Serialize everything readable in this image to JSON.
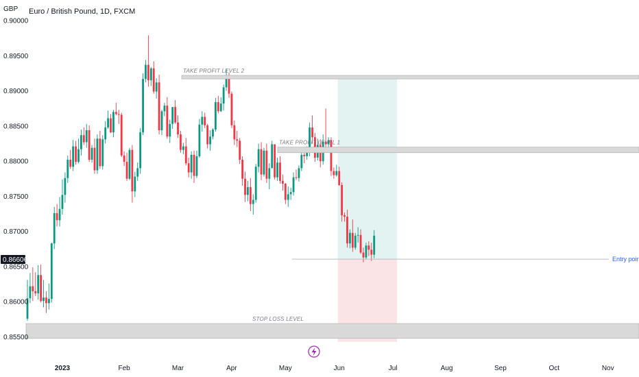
{
  "header": {
    "title": "Euro / British Pound, 1D, FXCM",
    "currency": "GBP"
  },
  "chart_data": {
    "type": "candlestick",
    "title": "Euro / British Pound, 1D, FXCM",
    "ylabel": "GBP",
    "ylim": [
      0.8545,
      0.9024
    ],
    "y_ticks": [
      {
        "label": "0.90000",
        "value": 0.9
      },
      {
        "label": "0.89500",
        "value": 0.895
      },
      {
        "label": "0.89000",
        "value": 0.89
      },
      {
        "label": "0.88500",
        "value": 0.885
      },
      {
        "label": "0.88000",
        "value": 0.88
      },
      {
        "label": "0.87500",
        "value": 0.875
      },
      {
        "label": "0.87000",
        "value": 0.87
      },
      {
        "label": "0.86500",
        "value": 0.865
      },
      {
        "label": "0.86000",
        "value": 0.86
      },
      {
        "label": "0.85500",
        "value": 0.855
      }
    ],
    "x_ticks": [
      {
        "label": "2023",
        "bar": 13,
        "bold": true
      },
      {
        "label": "Feb",
        "bar": 36
      },
      {
        "label": "Mar",
        "bar": 56
      },
      {
        "label": "Apr",
        "bar": 76
      },
      {
        "label": "May",
        "bar": 96
      },
      {
        "label": "Jun",
        "bar": 116
      },
      {
        "label": "Jul",
        "bar": 136
      },
      {
        "label": "Aug",
        "bar": 156
      },
      {
        "label": "Sep",
        "bar": 176
      },
      {
        "label": "Oct",
        "bar": 196
      },
      {
        "label": "Nov",
        "bar": 216
      }
    ],
    "current_price": {
      "label": "0.86606",
      "value": 0.86606
    },
    "bar_closes": [
      0.8605,
      0.8622,
      0.8615,
      0.8612,
      0.8638,
      0.8601,
      0.8606,
      0.8598,
      0.8604,
      0.8683,
      0.8726,
      0.8716,
      0.8732,
      0.8752,
      0.8776,
      0.8802,
      0.8792,
      0.8821,
      0.8799,
      0.8817,
      0.8837,
      0.8827,
      0.8844,
      0.8802,
      0.8819,
      0.8787,
      0.8832,
      0.8793,
      0.8831,
      0.8848,
      0.8861,
      0.8841,
      0.887,
      0.8867,
      0.8866,
      0.8808,
      0.8799,
      0.8775,
      0.8816,
      0.8757,
      0.8778,
      0.879,
      0.8841,
      0.8917,
      0.8937,
      0.8915,
      0.8932,
      0.8899,
      0.8912,
      0.8844,
      0.8871,
      0.8879,
      0.8835,
      0.8853,
      0.8877,
      0.8855,
      0.8838,
      0.8816,
      0.8821,
      0.8797,
      0.8784,
      0.8809,
      0.8779,
      0.8807,
      0.8852,
      0.8863,
      0.8851,
      0.8824,
      0.8835,
      0.8845,
      0.8884,
      0.8871,
      0.8882,
      0.8905,
      0.8921,
      0.8896,
      0.8851,
      0.8831,
      0.8829,
      0.8802,
      0.8775,
      0.8752,
      0.8763,
      0.8739,
      0.8745,
      0.8792,
      0.8817,
      0.8781,
      0.8815,
      0.8775,
      0.879,
      0.8824,
      0.8777,
      0.8798,
      0.8772,
      0.8768,
      0.8745,
      0.8753,
      0.8756,
      0.8777,
      0.8776,
      0.879,
      0.8809,
      0.8807,
      0.8813,
      0.8848,
      0.8834,
      0.8805,
      0.8823,
      0.88,
      0.8828,
      0.8824,
      0.883,
      0.8786,
      0.878,
      0.8786,
      0.8766,
      0.8723,
      0.8721,
      0.8683,
      0.8698,
      0.8677,
      0.8694,
      0.8695,
      0.867,
      0.8663,
      0.868,
      0.8674,
      0.8667,
      0.8694
    ],
    "bar_opens": [
      0.8576,
      0.8605,
      0.8622,
      0.8615,
      0.8612,
      0.8638,
      0.8601,
      0.8606,
      0.8598,
      0.8604,
      0.8683,
      0.8726,
      0.8716,
      0.8732,
      0.8752,
      0.8776,
      0.8802,
      0.8792,
      0.8821,
      0.8799,
      0.8817,
      0.8837,
      0.8827,
      0.8844,
      0.8802,
      0.8819,
      0.8787,
      0.8832,
      0.8793,
      0.8831,
      0.8848,
      0.8861,
      0.8841,
      0.887,
      0.8867,
      0.8866,
      0.8808,
      0.8799,
      0.8775,
      0.8816,
      0.8757,
      0.8778,
      0.879,
      0.8841,
      0.8917,
      0.8937,
      0.8915,
      0.8932,
      0.8899,
      0.8912,
      0.8844,
      0.8871,
      0.8879,
      0.8835,
      0.8853,
      0.8877,
      0.8855,
      0.8838,
      0.8816,
      0.8821,
      0.8797,
      0.8784,
      0.8809,
      0.8779,
      0.8807,
      0.8852,
      0.8863,
      0.8851,
      0.8824,
      0.8835,
      0.8845,
      0.8884,
      0.8871,
      0.8882,
      0.8905,
      0.8921,
      0.8896,
      0.8851,
      0.8831,
      0.8829,
      0.8802,
      0.8775,
      0.8752,
      0.8763,
      0.8739,
      0.8745,
      0.8792,
      0.8817,
      0.8781,
      0.8815,
      0.8775,
      0.879,
      0.8824,
      0.8777,
      0.8798,
      0.8772,
      0.8768,
      0.8745,
      0.8753,
      0.8756,
      0.8777,
      0.8776,
      0.879,
      0.8809,
      0.8807,
      0.8813,
      0.8848,
      0.8834,
      0.8805,
      0.8823,
      0.88,
      0.8828,
      0.8824,
      0.883,
      0.8786,
      0.878,
      0.8786,
      0.8766,
      0.8723,
      0.8721,
      0.8683,
      0.8698,
      0.8677,
      0.8694,
      0.8695,
      0.867,
      0.8663,
      0.868,
      0.8674,
      0.8667
    ],
    "bar_highs": [
      0.8631,
      0.8641,
      0.8649,
      0.8642,
      0.8652,
      0.8653,
      0.8631,
      0.8615,
      0.8626,
      0.8684,
      0.8735,
      0.8739,
      0.8749,
      0.8774,
      0.8784,
      0.8808,
      0.8816,
      0.883,
      0.8829,
      0.8832,
      0.8845,
      0.8848,
      0.8853,
      0.8851,
      0.8823,
      0.8832,
      0.8838,
      0.8843,
      0.8837,
      0.8857,
      0.8872,
      0.8867,
      0.8873,
      0.8883,
      0.8873,
      0.8869,
      0.8814,
      0.8812,
      0.8819,
      0.8823,
      0.8785,
      0.8798,
      0.8847,
      0.8925,
      0.8944,
      0.8979,
      0.8934,
      0.8942,
      0.8918,
      0.8923,
      0.8873,
      0.8883,
      0.8891,
      0.8859,
      0.8877,
      0.8887,
      0.8865,
      0.8843,
      0.8826,
      0.8833,
      0.8805,
      0.8814,
      0.8815,
      0.8815,
      0.886,
      0.8871,
      0.8869,
      0.8853,
      0.8844,
      0.8847,
      0.889,
      0.8893,
      0.8891,
      0.8909,
      0.8931,
      0.8926,
      0.8899,
      0.8858,
      0.8843,
      0.8833,
      0.8807,
      0.8785,
      0.8772,
      0.8776,
      0.8753,
      0.8796,
      0.8825,
      0.8827,
      0.8819,
      0.8825,
      0.8797,
      0.8829,
      0.8824,
      0.8805,
      0.8807,
      0.8781,
      0.8769,
      0.8764,
      0.8762,
      0.8784,
      0.8788,
      0.8794,
      0.8818,
      0.8819,
      0.8821,
      0.8855,
      0.8865,
      0.884,
      0.8832,
      0.8831,
      0.8838,
      0.8875,
      0.8834,
      0.8834,
      0.8791,
      0.8795,
      0.8792,
      0.877,
      0.8727,
      0.8731,
      0.8703,
      0.8717,
      0.8698,
      0.8706,
      0.8703,
      0.8677,
      0.8684,
      0.8686,
      0.8684,
      0.8702
    ],
    "bar_lows": [
      0.8573,
      0.8598,
      0.8601,
      0.8608,
      0.8603,
      0.8599,
      0.8592,
      0.8584,
      0.8589,
      0.8599,
      0.8675,
      0.8707,
      0.8707,
      0.8724,
      0.8741,
      0.8769,
      0.8789,
      0.8786,
      0.8795,
      0.8797,
      0.8808,
      0.8823,
      0.8819,
      0.8799,
      0.8798,
      0.8782,
      0.8782,
      0.8789,
      0.8788,
      0.8825,
      0.8846,
      0.884,
      0.8834,
      0.8865,
      0.8853,
      0.8806,
      0.8793,
      0.8772,
      0.8773,
      0.8741,
      0.8749,
      0.8772,
      0.8782,
      0.8837,
      0.8912,
      0.8906,
      0.8907,
      0.8896,
      0.8889,
      0.8838,
      0.8837,
      0.8864,
      0.8832,
      0.8826,
      0.8846,
      0.8853,
      0.8833,
      0.8812,
      0.881,
      0.8794,
      0.8777,
      0.8775,
      0.8769,
      0.8776,
      0.8805,
      0.8842,
      0.8847,
      0.8818,
      0.8815,
      0.8831,
      0.8842,
      0.8868,
      0.887,
      0.8872,
      0.89,
      0.889,
      0.8847,
      0.8823,
      0.882,
      0.8796,
      0.8765,
      0.8742,
      0.8743,
      0.8729,
      0.8724,
      0.8741,
      0.8784,
      0.8773,
      0.8778,
      0.8769,
      0.876,
      0.879,
      0.8774,
      0.8772,
      0.8768,
      0.8758,
      0.8739,
      0.8735,
      0.8745,
      0.8751,
      0.8773,
      0.8771,
      0.8786,
      0.8797,
      0.8802,
      0.8807,
      0.8825,
      0.8799,
      0.8801,
      0.8791,
      0.8795,
      0.8818,
      0.8815,
      0.8779,
      0.8775,
      0.8778,
      0.8765,
      0.8714,
      0.8714,
      0.8677,
      0.8676,
      0.8671,
      0.8674,
      0.8684,
      0.8668,
      0.8656,
      0.866,
      0.8665,
      0.8658,
      0.8662
    ],
    "overlays": [
      {
        "name": "take-profit-level-2",
        "label": "TAKE PROFIT LEVEL 2",
        "from": 0.8917,
        "to": 0.8922
      },
      {
        "name": "take-profit-level-1",
        "label": "TAKE PROFIT LEVEL 1",
        "from": 0.8812,
        "to": 0.882
      },
      {
        "name": "stop-loss-level",
        "label": "STOP LOSS LEVEL",
        "from": 0.8548,
        "to": 0.8569
      }
    ],
    "entry": {
      "label": "Entry point",
      "value": 0.86606
    },
    "position": {
      "entry": 0.86606,
      "target": 0.8922,
      "stop": 0.8543,
      "from_bar": 116,
      "to_bar": 137
    }
  },
  "colors": {
    "up": "#089981",
    "down": "#f23645",
    "overlay_fill": "#d9d9d9",
    "target_fill": "#e3f3f1",
    "stop_fill": "#fbe4e6",
    "entry": "#2962ff",
    "replay_icon": "#9c27b0"
  }
}
